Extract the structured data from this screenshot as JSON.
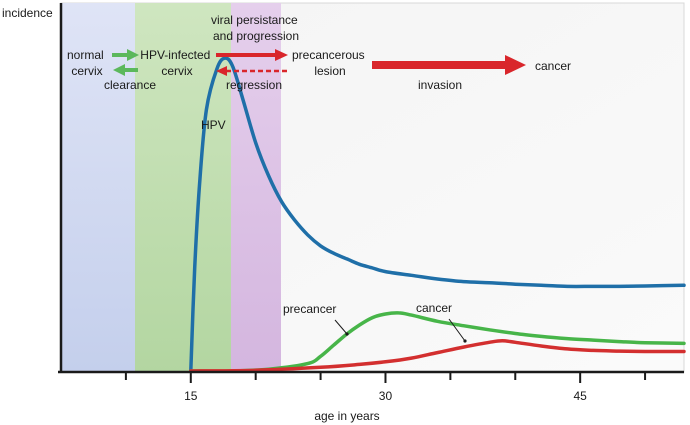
{
  "chart_data": {
    "type": "line",
    "title": "",
    "xlabel": "age in years",
    "ylabel": "incidence",
    "xlim": [
      5,
      53
    ],
    "ylim": [
      0,
      100
    ],
    "x_ticks": [
      15,
      30,
      45
    ],
    "x_minor_ticks": [
      10,
      20,
      25,
      35,
      40,
      50
    ],
    "grid": false,
    "series": [
      {
        "name": "HPV",
        "color": "#1f6fa8",
        "x": [
          15,
          15.3,
          15.7,
          16.2,
          17,
          17.6,
          18.2,
          19,
          20,
          21,
          22,
          23,
          24,
          25,
          26,
          27,
          28,
          29,
          30,
          32,
          34,
          36,
          38,
          40,
          42,
          44,
          46,
          48,
          50,
          53
        ],
        "y": [
          0,
          28,
          52,
          71,
          82,
          85,
          83,
          74,
          62,
          53,
          46,
          41,
          37,
          34,
          32,
          30.5,
          29,
          28,
          27,
          26,
          25,
          24.3,
          24,
          23.6,
          23.3,
          23,
          23,
          23,
          23.1,
          23.3
        ]
      },
      {
        "name": "precancer",
        "color": "#47b549",
        "x": [
          15,
          18,
          21,
          24,
          25,
          26,
          27,
          28,
          29,
          30,
          31,
          32,
          34,
          36,
          38,
          40,
          42,
          44,
          46,
          48,
          50,
          53
        ],
        "y": [
          0,
          0,
          0.5,
          2,
          4,
          7,
          10,
          12.5,
          14.5,
          15.5,
          15.8,
          15.2,
          13.5,
          12.3,
          11.2,
          10.2,
          9.4,
          8.8,
          8.4,
          8,
          7.7,
          7.5
        ]
      },
      {
        "name": "cancer",
        "color": "#d32f2f",
        "x": [
          15,
          20,
          25,
          28,
          30,
          32,
          34,
          36,
          38,
          39,
          40,
          42,
          44,
          46,
          48,
          50,
          53
        ],
        "y": [
          0,
          0.2,
          1,
          1.8,
          2.5,
          3.5,
          5,
          6.5,
          7.8,
          8.2,
          7.8,
          6.8,
          6,
          5.6,
          5.4,
          5.3,
          5.3
        ]
      }
    ],
    "bands": [
      {
        "stage": "normal cervix",
        "from": 5,
        "to": 15,
        "color": "#c9d3ee"
      },
      {
        "stage": "HPV-infected cervix",
        "from": 15,
        "to": 21.5,
        "color": "#b9d9a9"
      },
      {
        "stage": "precancerous lesion",
        "from": 21.5,
        "to": 25,
        "color": "#d9bde3"
      }
    ],
    "annotations": {
      "normal_cervix": [
        "normal",
        "cervix"
      ],
      "hpv_infected_cervix": [
        "HPV-infected",
        "cervix"
      ],
      "precancerous_lesion": [
        "precancerous",
        "lesion"
      ],
      "viral_persistence": [
        "viral persistance",
        "and progression"
      ],
      "clearance": "clearance",
      "regression": "regression",
      "invasion": "invasion",
      "cancer_stage": "cancer",
      "hpv_curve_label": "HPV",
      "precancer_curve_label": "precancer",
      "cancer_curve_label": "cancer"
    },
    "colors": {
      "green_arrow": "#5cb85c",
      "red_arrow": "#d9262b",
      "axis": "#1a1a1a"
    }
  }
}
